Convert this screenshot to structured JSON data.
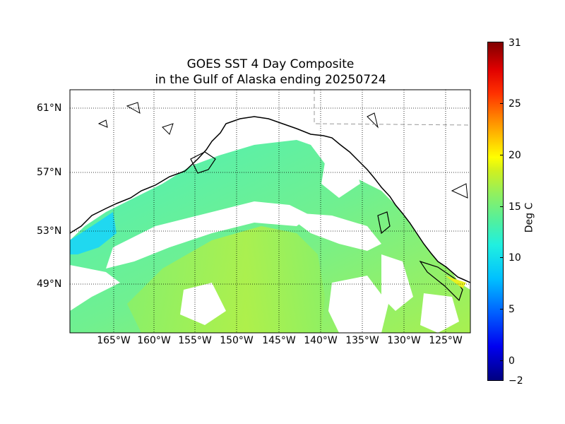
{
  "title": {
    "line1": "GOES SST 4 Day Composite",
    "line2": "in the Gulf of Alaska ending 20250724"
  },
  "map": {
    "lat_labels": [
      "61°N",
      "57°N",
      "53°N",
      "49°N"
    ],
    "lon_labels": [
      "165°W",
      "160°W",
      "155°W",
      "150°W",
      "145°W",
      "140°W",
      "135°W",
      "130°W",
      "125°W"
    ],
    "land_color": "#ffffff",
    "coastline_color": "#000000",
    "gridline_style": "dotted",
    "cloud_mask_color": "#ffffff"
  },
  "colorbar": {
    "label": "Deg C",
    "tick_labels": [
      "31",
      "25",
      "20",
      "15",
      "10",
      "5",
      "0",
      "−2"
    ],
    "colormap": "jet",
    "min": -2,
    "max": 31
  }
}
